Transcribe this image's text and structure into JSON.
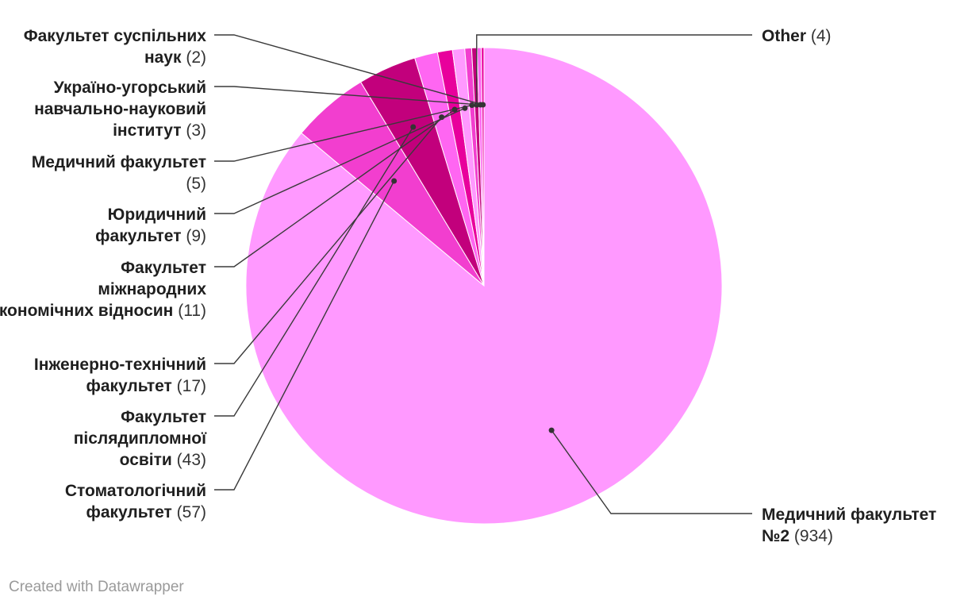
{
  "chart_data": {
    "type": "pie",
    "slices": [
      {
        "name": "Медичний факультет №2",
        "value": 934,
        "color": "#ff99ff"
      },
      {
        "name": "Стоматологічний факультет",
        "value": 57,
        "color": "#f23ecf"
      },
      {
        "name": "Факультет післядипломної освіти",
        "value": 43,
        "color": "#c2007c"
      },
      {
        "name": "Інженерно-технічний факультет",
        "value": 17,
        "color": "#ff66f2"
      },
      {
        "name": "Факультет міжнародних економічних відносин",
        "value": 11,
        "color": "#e8009c"
      },
      {
        "name": "Юридичний факультет",
        "value": 9,
        "color": "#ff99ff"
      },
      {
        "name": "Медичний факультет",
        "value": 5,
        "color": "#f23ecf"
      },
      {
        "name": "Other",
        "value": 4,
        "color": "#c2007c"
      },
      {
        "name": "Україно-угорський навчально-науковий інститут",
        "value": 3,
        "color": "#ff66f2"
      },
      {
        "name": "Факультет суспільних наук",
        "value": 2,
        "color": "#e8009c"
      }
    ]
  },
  "credit": "Created with Datawrapper"
}
